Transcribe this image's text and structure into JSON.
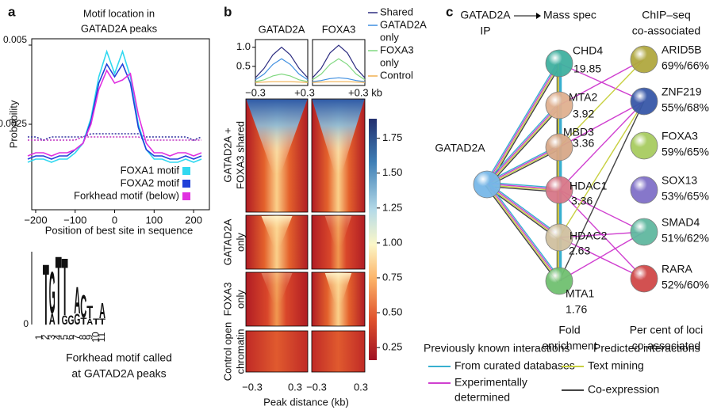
{
  "chart_data": {
    "type": "line",
    "panel_label": "a",
    "title": [
      "Motif location in",
      "GATAD2A peaks"
    ],
    "x_label": "Position of best site in sequence",
    "y_label": "Probability",
    "x": [
      -220,
      -200,
      -180,
      -160,
      -140,
      -120,
      -100,
      -80,
      -60,
      -40,
      -20,
      0,
      20,
      40,
      60,
      80,
      100,
      120,
      140,
      160,
      180,
      200,
      220
    ],
    "xlim": [
      -210,
      240
    ],
    "xticks": [
      {
        "value": -200,
        "label": "−200"
      },
      {
        "value": -100,
        "label": "−100"
      },
      0,
      100,
      200
    ],
    "ylim": [
      -0.0002,
      0.0052
    ],
    "yticks": [
      0.0025,
      0.005
    ],
    "legend": "lower right",
    "series": [
      {
        "color": "#3030a0",
        "dash": true,
        "values": [
          0.0021,
          0.0021,
          0.002,
          0.0021,
          0.0021,
          0.0021,
          0.0021,
          0.0021,
          0.0022,
          0.0022,
          0.0022,
          0.0022,
          0.0022,
          0.0022,
          0.0022,
          0.0021,
          0.0021,
          0.0021,
          0.0021,
          0.0021,
          0.0021,
          0.002,
          0.0021
        ]
      },
      {
        "color": "#c030c0",
        "dash": true,
        "values": [
          0.002,
          0.002,
          0.002,
          0.002,
          0.002,
          0.002,
          0.002,
          0.0021,
          0.0021,
          0.0021,
          0.0021,
          0.0021,
          0.0021,
          0.0021,
          0.0021,
          0.002,
          0.002,
          0.002,
          0.002,
          0.002,
          0.002,
          0.002,
          0.002
        ]
      },
      {
        "name": "FOXA1 motif",
        "color": "#30d8f0",
        "values": [
          0.0013,
          0.0014,
          0.0014,
          0.0013,
          0.0014,
          0.0014,
          0.0016,
          0.0019,
          0.0027,
          0.004,
          0.0048,
          0.0041,
          0.0048,
          0.004,
          0.0025,
          0.0017,
          0.0014,
          0.0014,
          0.0013,
          0.0013,
          0.0014,
          0.0013,
          0.0014
        ]
      },
      {
        "name": "FOXA2 motif",
        "color": "#2040d8",
        "values": [
          0.0014,
          0.0015,
          0.0015,
          0.0014,
          0.0015,
          0.0015,
          0.0017,
          0.0019,
          0.0026,
          0.0038,
          0.0044,
          0.004,
          0.0044,
          0.0038,
          0.0024,
          0.0017,
          0.0015,
          0.0015,
          0.0014,
          0.0014,
          0.0015,
          0.0014,
          0.0015
        ]
      },
      {
        "name": "Forkhead motif (below)",
        "color": "#e030e0",
        "values": [
          0.0015,
          0.0016,
          0.0016,
          0.0015,
          0.0016,
          0.0016,
          0.0017,
          0.0019,
          0.0025,
          0.0036,
          0.0042,
          0.0038,
          0.0039,
          0.0041,
          0.0028,
          0.0019,
          0.0016,
          0.0016,
          0.0015,
          0.0016,
          0.0016,
          0.0015,
          0.0016
        ]
      }
    ]
  },
  "logo": {
    "y_tick": "0",
    "positions": [
      "1",
      "2",
      "3",
      "4",
      "5",
      "6",
      "7",
      "8",
      "9",
      "10",
      "11"
    ],
    "letters": [
      "T",
      "A",
      "G",
      "T",
      "G",
      "T",
      "G",
      "G",
      "A",
      "T",
      "C",
      "A",
      "T",
      "T",
      "T",
      "A"
    ],
    "caption": [
      "Forkhead motif called",
      "at GATAD2A peaks"
    ]
  },
  "panel_b": {
    "label": "b",
    "profile": {
      "x": [
        -0.3,
        -0.2,
        -0.1,
        0,
        0.1,
        0.2,
        0.3
      ],
      "ylim": [
        0,
        1.2
      ],
      "yticks": [
        0.5,
        {
          "value": 1,
          "label": "1.0"
        }
      ],
      "xtick_labels": [
        "−0.3",
        "+0.3",
        "+0.3 kb"
      ],
      "series": [
        {
          "name": [
            "Shared"
          ],
          "color": "#2c2c80"
        },
        {
          "name": [
            "GATAD2A",
            "only"
          ],
          "color": "#3f8fe0"
        },
        {
          "name": [
            "FOXA3",
            "only"
          ],
          "color": "#80d880"
        },
        {
          "name": [
            "Control"
          ],
          "color": "#f0b050"
        }
      ],
      "panels": [
        {
          "title": "GATAD2A",
          "values": [
            [
              0.2,
              0.45,
              0.8,
              1.0,
              0.8,
              0.45,
              0.2
            ],
            [
              0.15,
              0.3,
              0.55,
              0.7,
              0.55,
              0.3,
              0.15
            ],
            [
              0.1,
              0.15,
              0.25,
              0.3,
              0.25,
              0.15,
              0.1
            ],
            [
              0.08,
              0.09,
              0.1,
              0.1,
              0.1,
              0.09,
              0.08
            ]
          ]
        },
        {
          "title": "FOXA3",
          "values": [
            [
              0.2,
              0.45,
              0.85,
              1.05,
              0.85,
              0.45,
              0.2
            ],
            [
              0.1,
              0.13,
              0.18,
              0.2,
              0.18,
              0.13,
              0.1
            ],
            [
              0.15,
              0.3,
              0.55,
              0.7,
              0.55,
              0.3,
              0.15
            ],
            [
              0.08,
              0.09,
              0.1,
              0.1,
              0.1,
              0.09,
              0.08
            ]
          ]
        }
      ]
    },
    "heatmap": {
      "rows": [
        [
          "GATAD2A +",
          "FOXA3 shared"
        ],
        [
          "GATAD2A",
          "only"
        ],
        [
          "FOXA3",
          "only"
        ],
        [
          "Control open",
          "chromatin"
        ]
      ],
      "xtick_labels": [
        "−0.3",
        "0.3",
        "−0.3",
        "0.3"
      ],
      "x_label": "Peak distance (kb)",
      "colorbar": {
        "lim": [
          0.16,
          1.89
        ],
        "ticks": [
          0.25,
          {
            "value": 0.5,
            "label": "0.50"
          },
          0.75,
          {
            "value": 1,
            "label": "1.00"
          },
          1.25,
          {
            "value": 1.5,
            "label": "1.50"
          },
          1.75
        ]
      }
    }
  },
  "panel_c": {
    "label": "c",
    "ip": [
      "GATAD2A",
      "IP"
    ],
    "ms": "Mass spec",
    "chip": [
      "ChIP–seq",
      "co-associated"
    ],
    "hub": {
      "name": "GATAD2A",
      "color": "#78b8e8"
    },
    "fold_nodes": [
      {
        "name": "CHD4",
        "value": 19.85,
        "color": "#40b0a0"
      },
      {
        "name": "MTA2",
        "value": 3.92,
        "color": "#e0b090"
      },
      {
        "name": "MBD3",
        "value": 3.36,
        "color": "#d8a888"
      },
      {
        "name": "HDAC1",
        "value": 3.36,
        "color": "#d87888"
      },
      {
        "name": "HDAC2",
        "value": 2.63,
        "color": "#d0c0a0"
      },
      {
        "name": "MTA1",
        "value": 1.76,
        "color": "#70c070"
      }
    ],
    "chip_nodes": [
      {
        "name": "ARID5B",
        "value": "69%/66%",
        "color": "#b0a840"
      },
      {
        "name": "ZNF219",
        "value": "55%/68%",
        "color": "#3858a8"
      },
      {
        "name": "FOXA3",
        "value": "59%/65%",
        "color": "#a8cc60"
      },
      {
        "name": "SOX13",
        "value": "53%/65%",
        "color": "#8070c8"
      },
      {
        "name": "SMAD4",
        "value": "51%/62%",
        "color": "#60b8a0"
      },
      {
        "name": "RARA",
        "value": "52%/60%",
        "color": "#d04848"
      }
    ],
    "fold_caption": [
      "Fold",
      "enrichment"
    ],
    "chip_caption": [
      "Per cent of loci",
      "co-associated"
    ],
    "legend": {
      "known": "Previously known interactions",
      "predicted": "Predicted interactions",
      "items": [
        {
          "name": [
            "From curated databases"
          ],
          "color": "#38b0d0"
        },
        {
          "name": [
            "Experimentally",
            "determined"
          ],
          "color": "#d040d0"
        },
        {
          "name": [
            "Text mining"
          ],
          "color": "#c8d040"
        },
        {
          "name": [
            "Co-expression"
          ],
          "color": "#444444"
        }
      ]
    }
  }
}
